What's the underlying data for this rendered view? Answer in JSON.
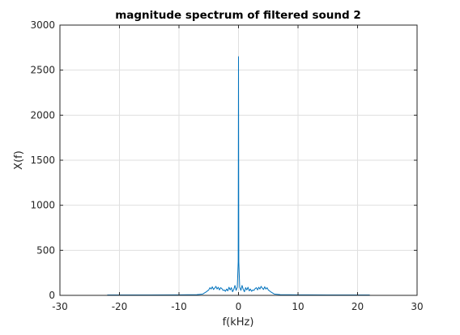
{
  "chart_data": {
    "type": "line",
    "title": "magnitude spectrum of filtered sound 2",
    "xlabel": "f(kHz)",
    "ylabel": "X(f)",
    "xlim": [
      -30,
      30
    ],
    "ylim": [
      0,
      3000
    ],
    "xticks": [
      -30,
      -20,
      -10,
      0,
      10,
      20,
      30
    ],
    "yticks": [
      0,
      500,
      1000,
      1500,
      2000,
      2500,
      3000
    ],
    "grid": true,
    "line_color": "#0072BD",
    "series": [
      {
        "x": [
          -22.05,
          -20,
          -15,
          -10,
          -7,
          -6,
          -5.5,
          -5,
          -4.8,
          -4.6,
          -4.4,
          -4.2,
          -4.0,
          -3.8,
          -3.6,
          -3.4,
          -3.2,
          -3.0,
          -2.8,
          -2.6,
          -2.4,
          -2.2,
          -2.0,
          -1.8,
          -1.6,
          -1.4,
          -1.2,
          -1.0,
          -0.8,
          -0.6,
          -0.4,
          -0.2,
          -0.05,
          0,
          0.05,
          0.2,
          0.4,
          0.6,
          0.8,
          1.0,
          1.2,
          1.4,
          1.6,
          1.8,
          2.0,
          2.2,
          2.4,
          2.6,
          2.8,
          3.0,
          3.2,
          3.4,
          3.6,
          3.8,
          4.0,
          4.2,
          4.4,
          4.6,
          4.8,
          5.0,
          5.5,
          6,
          7,
          10,
          15,
          20,
          22.05
        ],
        "y": [
          4,
          4,
          5,
          6,
          8,
          15,
          35,
          60,
          85,
          70,
          95,
          65,
          80,
          100,
          70,
          90,
          60,
          85,
          75,
          55,
          60,
          45,
          70,
          50,
          90,
          60,
          85,
          40,
          65,
          110,
          55,
          90,
          370,
          2650,
          370,
          90,
          55,
          110,
          65,
          40,
          85,
          60,
          90,
          50,
          70,
          45,
          60,
          55,
          75,
          85,
          60,
          90,
          70,
          100,
          80,
          65,
          95,
          70,
          85,
          60,
          35,
          15,
          8,
          6,
          5,
          4,
          4
        ]
      }
    ]
  }
}
